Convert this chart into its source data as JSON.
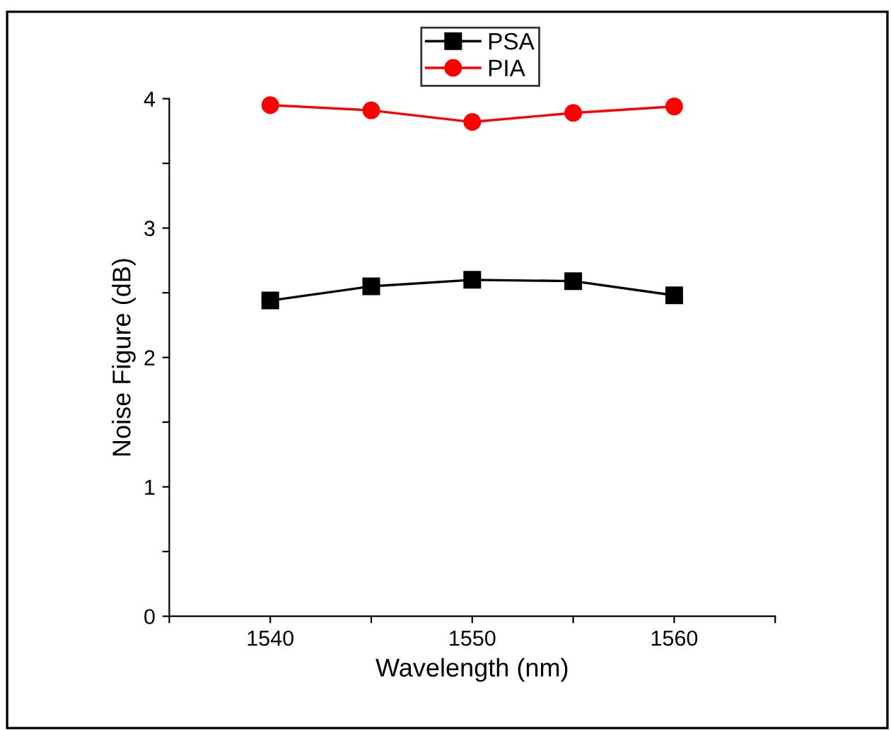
{
  "chart_data": {
    "type": "line",
    "xlabel": "Wavelength (nm)",
    "ylabel": "Noise Figure (dB)",
    "x": [
      1540,
      1545,
      1550,
      1555,
      1560
    ],
    "series": [
      {
        "name": "PSA",
        "color": "#000000",
        "marker": "square",
        "values": [
          2.44,
          2.55,
          2.6,
          2.59,
          2.48
        ]
      },
      {
        "name": "PIA",
        "color": "#ff0000",
        "marker": "circle",
        "values": [
          3.95,
          3.91,
          3.82,
          3.89,
          3.94
        ]
      }
    ],
    "xlim": [
      1535,
      1565
    ],
    "xticks": [
      {
        "value": 1535,
        "label": null
      },
      1540,
      {
        "value": 1545,
        "label": null
      },
      1550,
      {
        "value": 1555,
        "label": null
      },
      1560,
      {
        "value": 1565,
        "label": null
      }
    ],
    "ylim": [
      0,
      4
    ],
    "yticks": [
      0,
      {
        "value": 0.5,
        "label": null
      },
      1,
      {
        "value": 1.5,
        "label": null
      },
      2,
      {
        "value": 2.5,
        "label": null
      },
      3,
      {
        "value": 3.5,
        "label": null
      },
      4
    ],
    "grid": false,
    "legend": "top right",
    "line_style": "solid"
  }
}
